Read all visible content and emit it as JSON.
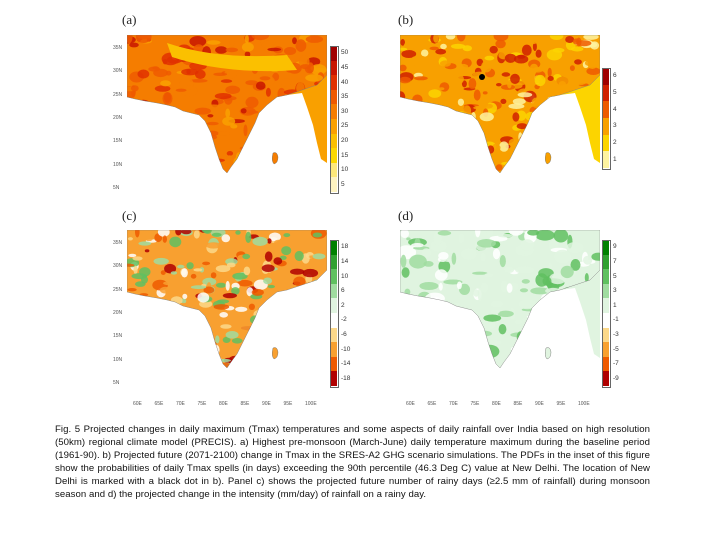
{
  "panels": [
    {
      "id": "a",
      "label": "(a)",
      "colorbar": {
        "ticks": [
          "50",
          "45",
          "40",
          "35",
          "30",
          "25",
          "20",
          "15",
          "10",
          "5"
        ],
        "colors": [
          "#a00000",
          "#c81500",
          "#e03000",
          "#ee5a00",
          "#f57d00",
          "#f9a000",
          "#fbc000",
          "#fcd800",
          "#fde87a",
          "#fef3c0"
        ]
      }
    },
    {
      "id": "b",
      "label": "(b)",
      "colorbar": {
        "ticks": [
          "6",
          "5",
          "4",
          "3",
          "2",
          "1"
        ],
        "colors": [
          "#a00000",
          "#d02000",
          "#ee5a00",
          "#f8a000",
          "#fcd400",
          "#fef3a0"
        ]
      }
    },
    {
      "id": "c",
      "label": "(c)",
      "colorbar": {
        "ticks": [
          "18",
          "14",
          "10",
          "6",
          "2",
          "-2",
          "-6",
          "-10",
          "-14",
          "-18"
        ],
        "colors": [
          "#008000",
          "#30a030",
          "#60c060",
          "#a0dca0",
          "#e0f4e0",
          "#ffffff",
          "#fcd88a",
          "#f8a030",
          "#ee5a00",
          "#b00000"
        ]
      }
    },
    {
      "id": "d",
      "label": "(d)",
      "colorbar": {
        "ticks": [
          "9",
          "7",
          "5",
          "3",
          "1",
          "-1",
          "-3",
          "-5",
          "-7",
          "-9"
        ],
        "colors": [
          "#008000",
          "#30a030",
          "#60c060",
          "#a0dca0",
          "#e0f4e0",
          "#ffffff",
          "#fcd88a",
          "#f8a030",
          "#ee5a00",
          "#b00000"
        ]
      }
    }
  ],
  "axes": {
    "lat_top": [
      "35N",
      "30N",
      "25N",
      "20N",
      "15N",
      "10N",
      "5N"
    ],
    "lat_bottom": [
      "35N",
      "30N",
      "25N",
      "20N",
      "15N",
      "10N",
      "5N"
    ],
    "lon": [
      "60E",
      "65E",
      "70E",
      "75E",
      "80E",
      "85E",
      "90E",
      "95E",
      "100E"
    ]
  },
  "caption": "Fig. 5 Projected changes in daily maximum (Tmax) temperatures and some aspects of daily rainfall over India based on high resolution (50km) regional climate model (PRECIS). a) Highest pre-monsoon (March-June) daily temperature maximum during the baseline period (1961-90). b) Projected future (2071-2100) change in Tmax in the SRES-A2 GHG scenario simulations. The PDFs in the inset of this figure show the probabilities of daily Tmax spells (in days) exceeding the 90th percentile (46.3 Deg C) value at New Delhi. The location of New Delhi is marked with a black dot in b). Panel c) shows the projected future number of rainy days (≥2.5 mm of rainfall) during monsoon season and d) the projected change in the intensity (mm/day) of rainfall on a rainy day."
}
